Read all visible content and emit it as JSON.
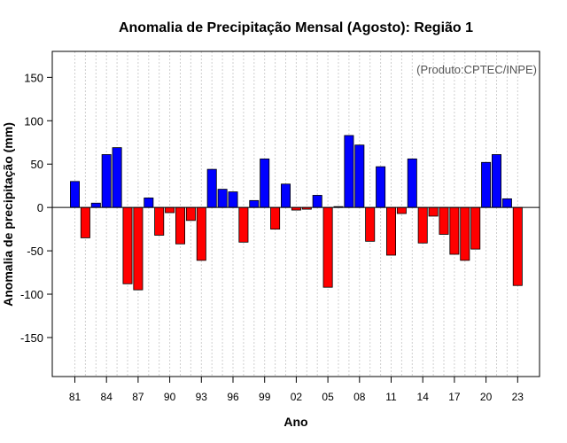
{
  "chart_data": {
    "type": "bar",
    "title": "Anomalia de Precipitação Mensal (Agosto): Região 1",
    "credit": "(Produto:CPTEC/INPE)",
    "xlabel": "Ano",
    "ylabel": "Anomalia de precipitação (mm)",
    "ylim": [
      -195,
      180
    ],
    "yticks": [
      -150,
      -100,
      -50,
      0,
      50,
      100,
      150
    ],
    "grid": "vertical dotted",
    "years": [
      1981,
      1982,
      1983,
      1984,
      1985,
      1986,
      1987,
      1988,
      1989,
      1990,
      1991,
      1992,
      1993,
      1994,
      1995,
      1996,
      1997,
      1998,
      1999,
      2000,
      2001,
      2002,
      2003,
      2004,
      2005,
      2006,
      2007,
      2008,
      2009,
      2010,
      2011,
      2012,
      2013,
      2014,
      2015,
      2016,
      2017,
      2018,
      2019,
      2020,
      2021,
      2022,
      2023
    ],
    "values": [
      30,
      -35,
      5,
      61,
      69,
      -88,
      -95,
      11,
      -32,
      -6,
      -42,
      -15,
      -61,
      44,
      21,
      18,
      -40,
      8,
      56,
      -25,
      27,
      -3,
      -2,
      14,
      -92,
      1,
      83,
      72,
      -39,
      47,
      -55,
      -7,
      56,
      -41,
      -10,
      -31,
      -54,
      -61,
      -48,
      52,
      61,
      10,
      -90
    ],
    "x_tick_years": [
      1981,
      1984,
      1987,
      1990,
      1993,
      1996,
      1999,
      2002,
      2005,
      2008,
      2011,
      2014,
      2017,
      2020,
      2023
    ],
    "x_tick_labels": [
      "81",
      "84",
      "87",
      "90",
      "93",
      "96",
      "99",
      "02",
      "05",
      "08",
      "11",
      "14",
      "17",
      "20",
      "23"
    ],
    "colors": {
      "positive": "#0000ff",
      "negative": "#ff0000",
      "grid": "#cfcfcf",
      "zero_line": "#000000",
      "credit_text": "#555555"
    }
  }
}
